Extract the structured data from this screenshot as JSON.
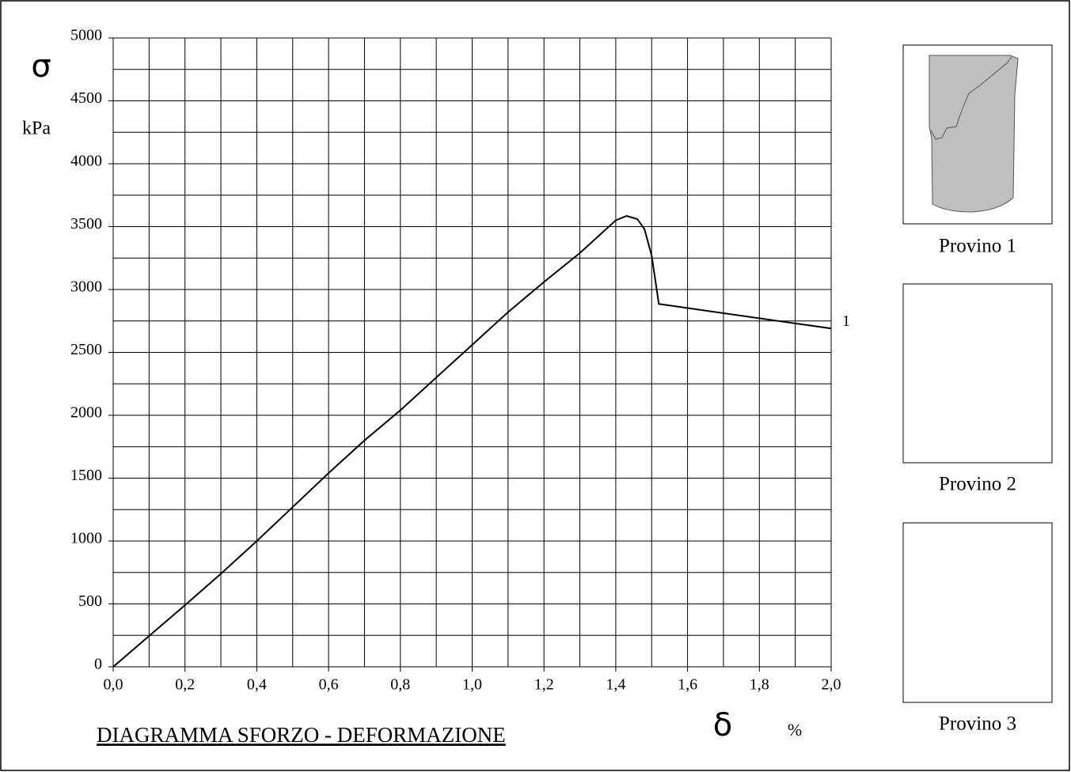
{
  "chart_data": {
    "type": "line",
    "title": "DIAGRAMMA   SFORZO - DEFORMAZIONE",
    "y_label": "σ",
    "y_unit": "kPa",
    "x_label": "δ",
    "x_unit": "%",
    "series": [
      {
        "name": "1",
        "color": "#000000",
        "x": [
          0,
          0.1,
          0.2,
          0.3,
          0.4,
          0.5,
          0.6,
          0.7,
          0.8,
          0.9,
          1.0,
          1.1,
          1.2,
          1.3,
          1.35,
          1.4,
          1.43,
          1.46,
          1.48,
          1.5,
          1.52,
          2.0
        ],
        "values": [
          0,
          245,
          490,
          740,
          1000,
          1270,
          1540,
          1800,
          2040,
          2300,
          2560,
          2820,
          3060,
          3290,
          3420,
          3550,
          3585,
          3560,
          3480,
          3270,
          2885,
          2690
        ]
      }
    ],
    "xlim": [
      0,
      2.0
    ],
    "ylim": [
      0,
      5000
    ],
    "xticks": [
      {
        "value": 0,
        "label": "0,0"
      },
      {
        "value": 0.2,
        "label": "0,2"
      },
      {
        "value": 0.4,
        "label": "0,4"
      },
      {
        "value": 0.6,
        "label": "0,6"
      },
      {
        "value": 0.8,
        "label": "0,8"
      },
      {
        "value": 1.0,
        "label": "1,0"
      },
      {
        "value": 1.2,
        "label": "1,2"
      },
      {
        "value": 1.4,
        "label": "1,4"
      },
      {
        "value": 1.6,
        "label": "1,6"
      },
      {
        "value": 1.8,
        "label": "1,8"
      },
      {
        "value": 2.0,
        "label": "2,0"
      }
    ],
    "yticks": [
      0,
      500,
      1000,
      1500,
      2000,
      2500,
      3000,
      3500,
      4000,
      4500,
      5000
    ],
    "x_minor_ticks": [
      0.1,
      0.3,
      0.5,
      0.7,
      0.9,
      1.1,
      1.3,
      1.5,
      1.7,
      1.9
    ],
    "y_minor_ticks": [
      250,
      750,
      1250,
      1750,
      2250,
      2750,
      3250,
      3750,
      4250,
      4750
    ],
    "grid": true
  },
  "specimens": [
    {
      "label": "Provino  1"
    },
    {
      "label": "Provino  2"
    },
    {
      "label": "Provino  3"
    }
  ]
}
